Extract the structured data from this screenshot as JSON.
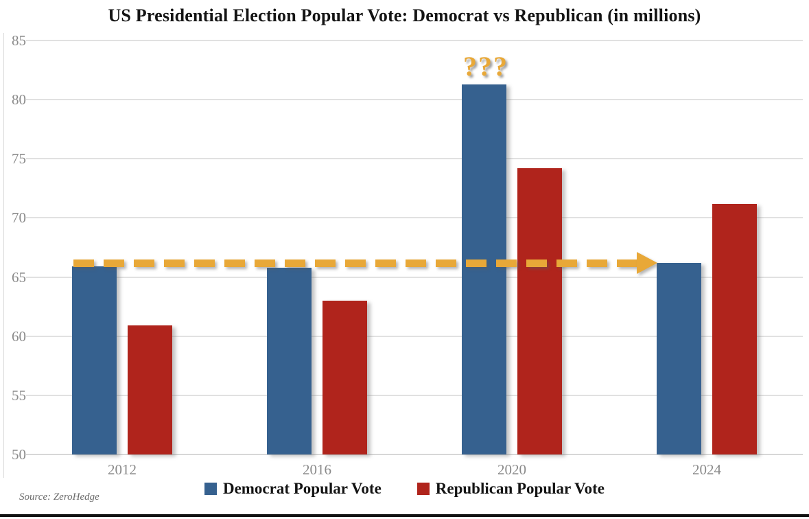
{
  "title": "US Presidential Election Popular Vote: Democrat vs Republican (in millions)",
  "source": "Source: ZeroHedge",
  "colors": {
    "democrat": "#36618F",
    "republican": "#B0241C",
    "accent_yellow": "#E8A838",
    "gridline": "#E1E1E1",
    "axis_label": "#8A8A8A"
  },
  "legend": {
    "items": [
      {
        "label": "Democrat Popular Vote",
        "color": "#36618F"
      },
      {
        "label": "Republican Popular Vote",
        "color": "#B0241C"
      }
    ]
  },
  "annotation": {
    "question_marks": "???",
    "arrow": {
      "y_value": 66.2,
      "from_category": "2012",
      "to_category": "2024",
      "note": "horizontal dashed arrow at ~66M pointing to 2024 Democrat bar"
    }
  },
  "chart_data": {
    "type": "bar",
    "title": "US Presidential Election Popular Vote: Democrat vs Republican (in millions)",
    "categories": [
      "2012",
      "2016",
      "2020",
      "2024"
    ],
    "series": [
      {
        "name": "Democrat Popular Vote",
        "color": "#36618F",
        "values": [
          65.9,
          65.8,
          81.3,
          66.2
        ]
      },
      {
        "name": "Republican Popular Vote",
        "color": "#B0241C",
        "values": [
          60.9,
          63.0,
          74.2,
          71.2
        ]
      }
    ],
    "xlabel": "",
    "ylabel": "",
    "ylim": [
      50,
      85
    ],
    "yticks": [
      50,
      55,
      60,
      65,
      70,
      75,
      80,
      85
    ],
    "grid": true,
    "legend_position": "bottom",
    "annotations": [
      {
        "text": "???",
        "position": "above Democrat 2020 bar",
        "color": "#E8A838"
      },
      {
        "type": "dashed-arrow",
        "y": 66.2,
        "note": "dashed yellow arrow from 2012 Democrat bar top to 2024 Democrat bar"
      }
    ]
  }
}
